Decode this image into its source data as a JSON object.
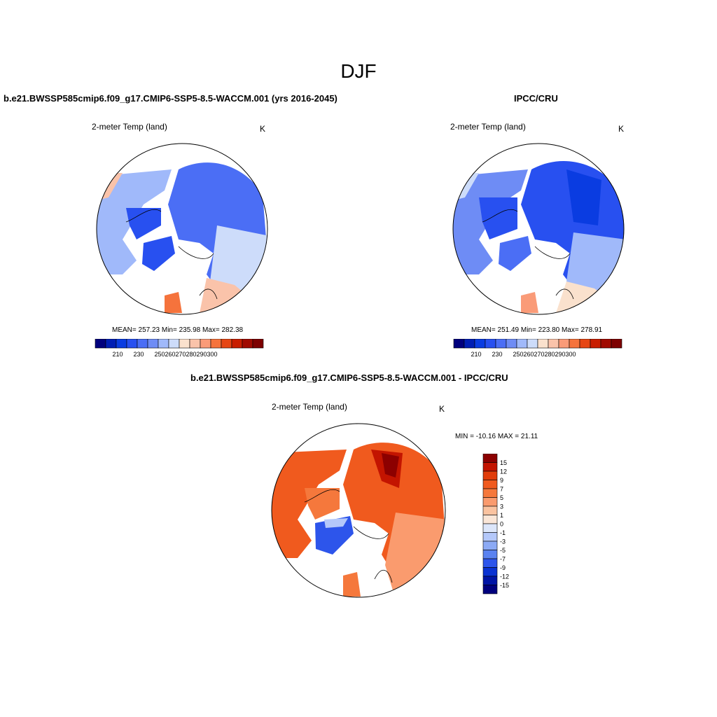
{
  "figure": {
    "title": "DJF"
  },
  "panels": [
    {
      "id": "model",
      "heading": "b.e21.BWSSP585cmip6.f09_g17.CMIP6-SSP5-8.5-WACCM.001 (yrs 2016-2045)",
      "variable": "2-meter Temp (land)",
      "units": "K",
      "stats": "MEAN= 257.23  Min= 235.98  Max= 282.38"
    },
    {
      "id": "obs",
      "heading": "IPCC/CRU",
      "variable": "2-meter Temp (land)",
      "units": "K",
      "stats": "MEAN= 251.49  Min= 223.80  Max= 278.91"
    },
    {
      "id": "diff",
      "heading": "b.e21.BWSSP585cmip6.f09_g17.CMIP6-SSP5-8.5-WACCM.001 - IPCC/CRU",
      "variable": "2-meter Temp (land)",
      "units": "K",
      "stats": "MIN = -10.16 MAX =  21.11"
    }
  ],
  "colorbar_abs": {
    "tick_labels": [
      "210",
      "230",
      "250",
      "260",
      "270",
      "280",
      "290",
      "300"
    ],
    "colors": [
      "#00007d",
      "#001eb4",
      "#0a3ce1",
      "#2850f0",
      "#4b6ef5",
      "#6e8cf5",
      "#a0b9fa",
      "#cddcfa",
      "#fae1cd",
      "#fac3aa",
      "#fa9b78",
      "#f5733c",
      "#e64614",
      "#c81e00",
      "#a00a00",
      "#7d0000"
    ]
  },
  "colorbar_diff": {
    "tick_labels": [
      "15",
      "12",
      "9",
      "7",
      "5",
      "3",
      "1",
      "0",
      "-1",
      "-3",
      "-5",
      "-7",
      "-9",
      "-12",
      "-15"
    ],
    "colors": [
      "#8c0000",
      "#c31400",
      "#e13c0a",
      "#f05a1e",
      "#f5783c",
      "#fa9b6e",
      "#fac3a0",
      "#fae6d7",
      "#dce6fa",
      "#b4c8fa",
      "#8caaf5",
      "#5a82f0",
      "#2d55eb",
      "#0a32d2",
      "#0014a5",
      "#00007d"
    ]
  }
}
